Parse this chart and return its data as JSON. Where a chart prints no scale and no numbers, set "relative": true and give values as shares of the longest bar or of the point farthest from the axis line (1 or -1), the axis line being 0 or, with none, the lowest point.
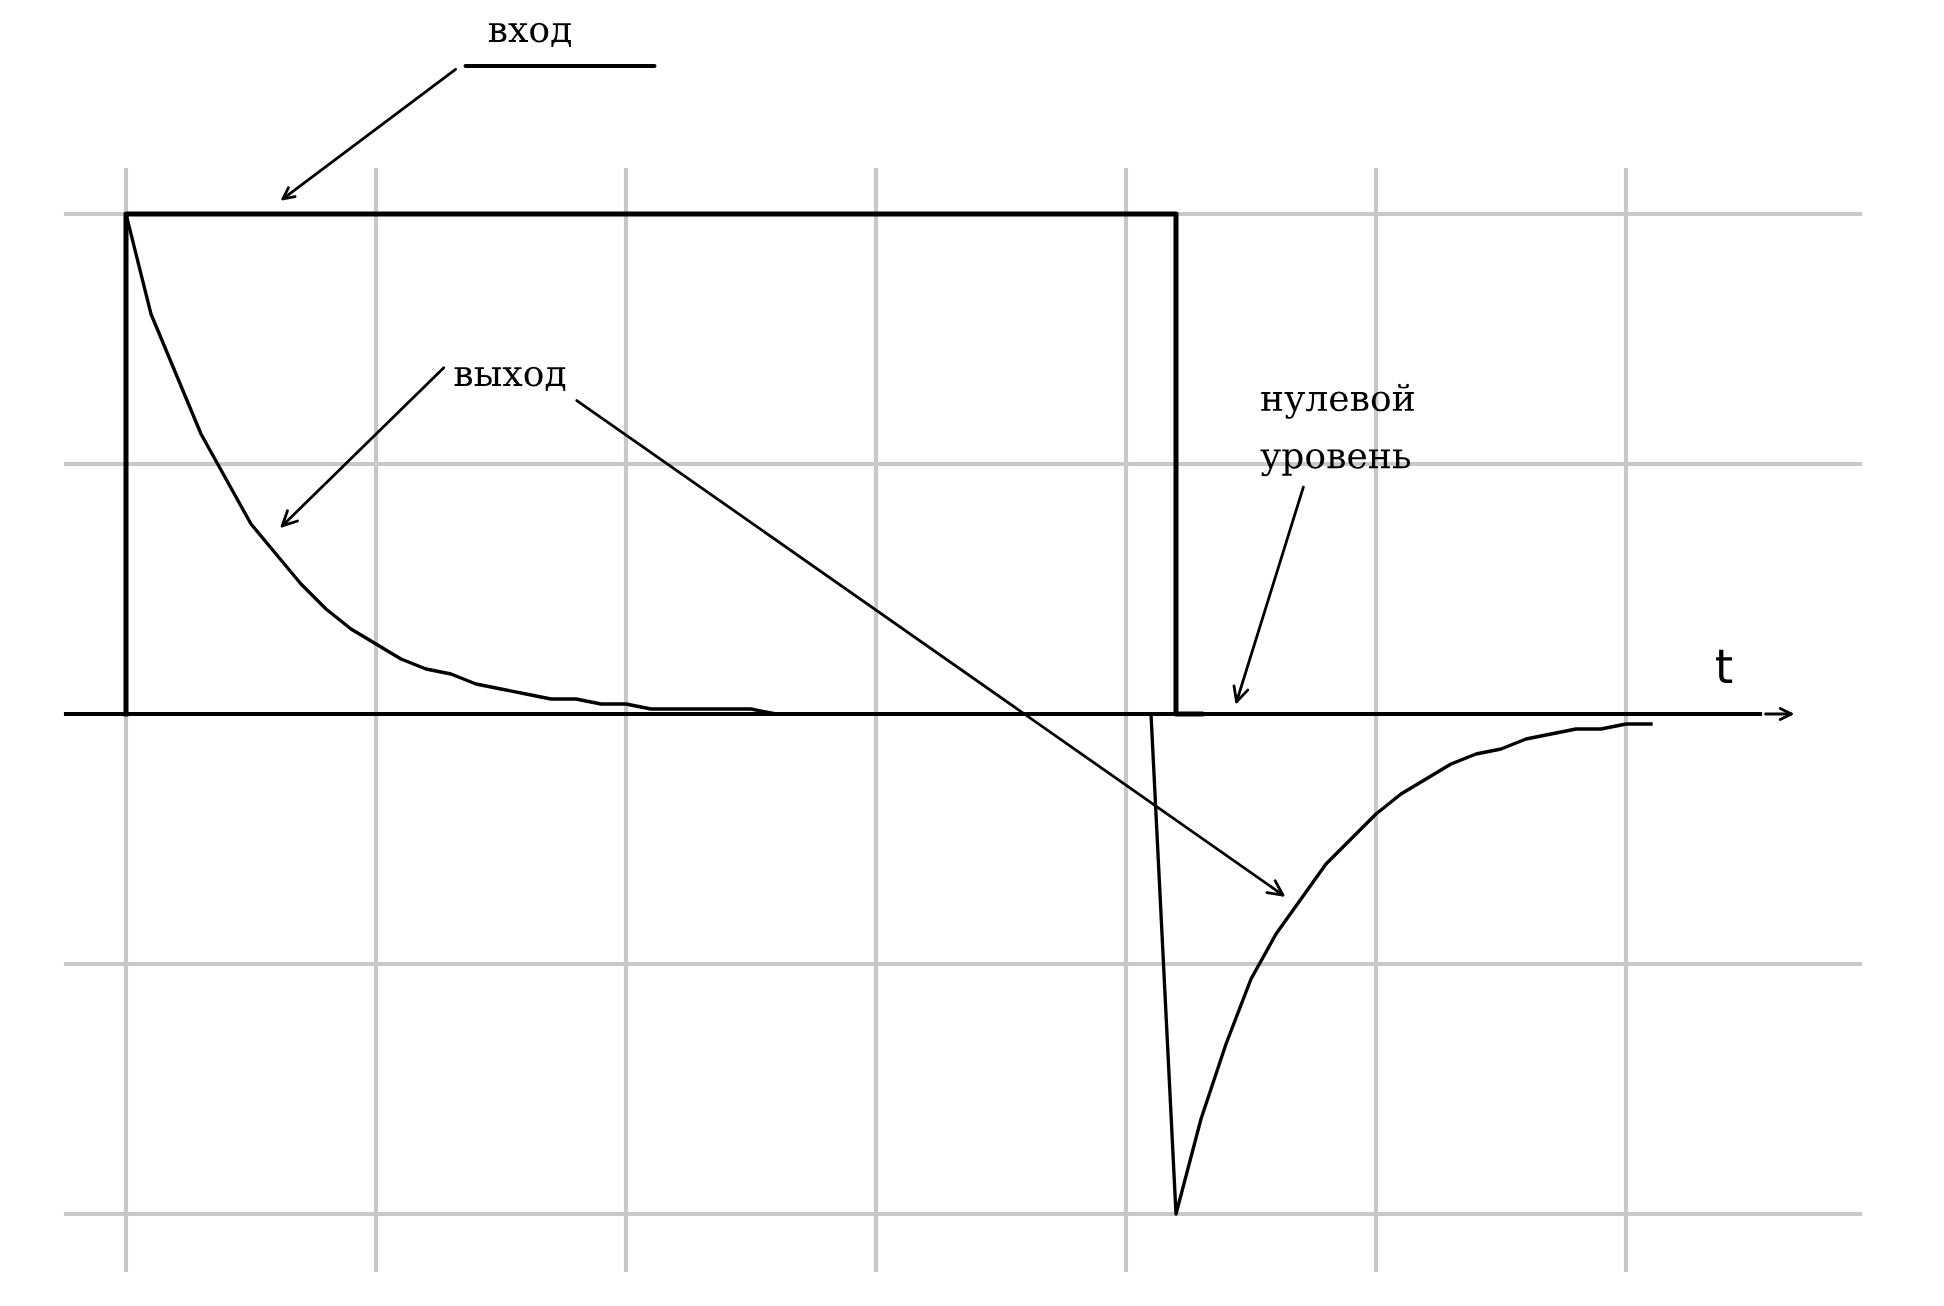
{
  "chart_data": {
    "type": "line",
    "relative": true,
    "xlabel": "t",
    "grid": true,
    "legend": false,
    "marker": "none",
    "line_style": "solid",
    "categories": [
      null,
      null,
      null,
      null,
      null,
      null,
      null,
      null,
      null,
      null,
      null,
      null,
      null,
      null,
      null,
      null,
      null,
      null,
      null,
      null,
      null,
      null,
      null,
      null,
      null,
      null,
      null,
      null,
      null,
      null,
      null,
      null,
      null,
      null,
      null,
      null,
      null,
      null,
      null,
      null,
      null,
      null,
      null,
      null,
      null,
      null,
      null,
      null,
      null,
      null,
      null,
      null,
      null,
      null,
      null,
      null,
      null,
      null,
      null,
      null,
      null,
      null
    ],
    "series": [
      {
        "type": "step",
        "color": "#000000",
        "values": [
          0,
          1,
          1,
          1,
          1,
          1,
          1,
          1,
          1,
          1,
          1,
          1,
          1,
          1,
          1,
          1,
          1,
          1,
          1,
          1,
          1,
          1,
          1,
          1,
          1,
          1,
          1,
          1,
          1,
          1,
          1,
          1,
          1,
          1,
          1,
          1,
          1,
          1,
          1,
          1,
          1,
          1,
          1,
          0,
          null,
          null,
          null,
          null,
          null,
          null,
          null,
          null,
          null,
          null,
          null,
          null,
          null,
          null,
          null,
          null,
          null,
          null
        ]
      },
      {
        "type": "line",
        "color": "#000000",
        "values": [
          1.0,
          0.8,
          0.68,
          0.56,
          0.47,
          0.38,
          0.32,
          0.26,
          0.21,
          0.17,
          0.14,
          0.11,
          0.09,
          0.08,
          0.06,
          0.05,
          0.04,
          0.03,
          0.03,
          0.02,
          0.02,
          0.01,
          0.01,
          0.01,
          0.01,
          0.01,
          0,
          0,
          0,
          0,
          0,
          0,
          0,
          0,
          0,
          0,
          0,
          0,
          0,
          0,
          0,
          0,
          -1.0,
          -0.81,
          -0.66,
          -0.53,
          -0.44,
          -0.37,
          -0.3,
          -0.25,
          -0.2,
          -0.16,
          -0.13,
          -0.1,
          -0.08,
          -0.07,
          -0.05,
          -0.04,
          -0.03,
          -0.03,
          -0.02,
          -0.02
        ]
      }
    ],
    "ref_lines": [
      {
        "axis": "y",
        "value": 0,
        "color": "#000000"
      }
    ],
    "annotations": [
      "вход",
      "выход",
      "нулевой\nуровень"
    ]
  }
}
